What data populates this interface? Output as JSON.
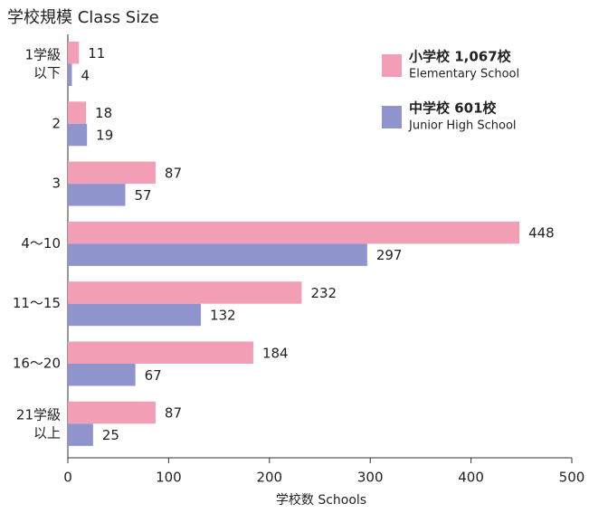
{
  "chart_data": {
    "type": "bar",
    "orientation": "horizontal",
    "title": "学校規模 Class Size",
    "xlabel": "学校数 Schools",
    "categories": [
      "1学級\n以下",
      "2",
      "3",
      "4〜10",
      "11〜15",
      "16〜20",
      "21学級\n以上"
    ],
    "series": [
      {
        "name": "小学校 1,067校",
        "name_en": "Elementary School",
        "color": "#f29fb5",
        "values": [
          11,
          18,
          87,
          448,
          232,
          184,
          87
        ]
      },
      {
        "name": "中学校 601校",
        "name_en": "Junior High School",
        "color": "#8f95cc",
        "values": [
          4,
          19,
          57,
          297,
          132,
          67,
          25
        ]
      }
    ],
    "xlim": [
      0,
      500
    ],
    "xticks": [
      0,
      100,
      200,
      300,
      400,
      500
    ],
    "legend": "upper right"
  }
}
